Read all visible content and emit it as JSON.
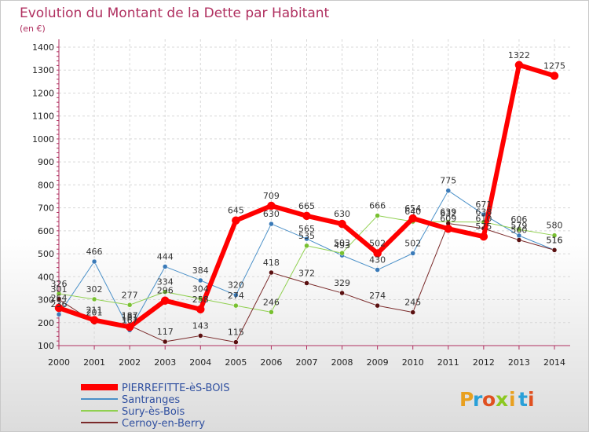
{
  "title": "Evolution du Montant de la Dette par Habitant",
  "unit_label": "(en €)",
  "logo": {
    "text": "Proxiti",
    "letters": [
      {
        "ch": "P",
        "color": "#e8a020"
      },
      {
        "ch": "r",
        "color": "#2aa0d8"
      },
      {
        "ch": "o",
        "color": "#e05020"
      },
      {
        "ch": "x",
        "color": "#8cc820"
      },
      {
        "ch": "i",
        "color": "#e8a020"
      },
      {
        "ch": "t",
        "color": "#2aa0d8"
      },
      {
        "ch": "i",
        "color": "#e05020"
      }
    ]
  },
  "chart_data": {
    "type": "line",
    "title": "Evolution du Montant de la Dette par Habitant",
    "ylabel": "(en €)",
    "xlabel": "",
    "x": [
      "2000",
      "2001",
      "2002",
      "2003",
      "2004",
      "2005",
      "2006",
      "2007",
      "2008",
      "2009",
      "2010",
      "2011",
      "2012",
      "2013",
      "2014"
    ],
    "ylim": [
      100,
      1400
    ],
    "yticks": [
      100,
      200,
      300,
      400,
      500,
      600,
      700,
      800,
      900,
      1000,
      1100,
      1200,
      1300,
      1400
    ],
    "grid": true,
    "legend_position": "bottom-left",
    "series": [
      {
        "name": "Santranges",
        "color": "#4a90c8",
        "marker": "#3a7ab8",
        "width": 1,
        "values": [
          236,
          466,
          167,
          444,
          384,
          320,
          630,
          565,
          493,
          430,
          502,
          775,
          671,
          579,
          516
        ]
      },
      {
        "name": "Sury-ès-Bois",
        "color": "#90d050",
        "marker": "#78c030",
        "width": 1,
        "values": [
          326,
          302,
          277,
          334,
          304,
          274,
          246,
          535,
          503,
          666,
          640,
          639,
          638,
          606,
          580
        ]
      },
      {
        "name": "Cernoy-en-Berry",
        "color": "#7a2a2a",
        "marker": "#5a1010",
        "width": 1,
        "values": [
          301,
          201,
          187,
          117,
          143,
          115,
          418,
          372,
          329,
          274,
          245,
          632,
          610,
          560,
          516
        ]
      },
      {
        "name": "PIERREFITTE-èS-BOIS",
        "color": "#ff0000",
        "marker": "#ff0000",
        "width": 6,
        "values": [
          264,
          211,
          181,
          296,
          258,
          645,
          709,
          665,
          630,
          502,
          654,
          609,
          575,
          1322,
          1275
        ]
      }
    ],
    "legend_order": [
      "PIERREFITTE-èS-BOIS",
      "Santranges",
      "Sury-ès-Bois",
      "Cernoy-en-Berry"
    ]
  }
}
